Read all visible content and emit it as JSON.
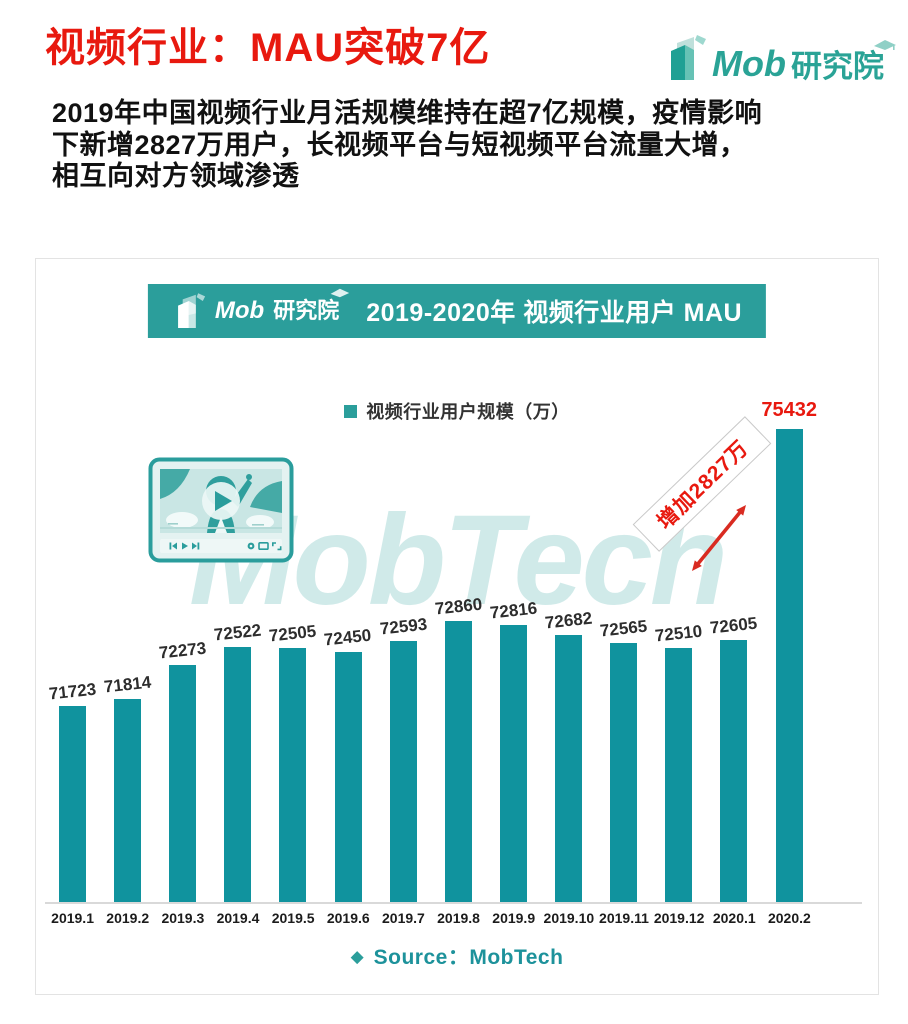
{
  "header": {
    "title": "视频行业：MAU突破7亿",
    "brand_latin": "Mob",
    "brand_cn": "研究院"
  },
  "intro": {
    "text": "2019年中国视频行业月活规模维持在超7亿规模，疫情影响\n下新增2827万用户，长视频平台与短视频平台流量大增，\n相互向对方领域渗透"
  },
  "chart": {
    "brand_latin": "Mob",
    "brand_cn": "研究院",
    "watermark": "MobTech",
    "source_prefix": "◆",
    "source_label": "Source：MobTech"
  },
  "chart_data": {
    "type": "bar",
    "title": "2019-2020年 视频行业用户 MAU",
    "series_label": "视频行业用户规模（万）",
    "categories": [
      "2019.1",
      "2019.2",
      "2019.3",
      "2019.4",
      "2019.5",
      "2019.6",
      "2019.7",
      "2019.8",
      "2019.9",
      "2019.10",
      "2019.11",
      "2019.12",
      "2020.1",
      "2020.2"
    ],
    "values": [
      71723,
      71814,
      72273,
      72522,
      72505,
      72450,
      72593,
      72860,
      72816,
      72682,
      72565,
      72510,
      72605,
      75432
    ],
    "ylim": [
      69100,
      76000
    ],
    "grid": false,
    "legend_position": "top",
    "annotation": "增加2827万",
    "highlight_index": 13
  },
  "colors": {
    "red": "#e8190f",
    "teal_dark": "#2b9e9b",
    "bar": "#10939e",
    "logo": "#2aa396",
    "watermark": "rgba(43,158,155,0.22)"
  }
}
